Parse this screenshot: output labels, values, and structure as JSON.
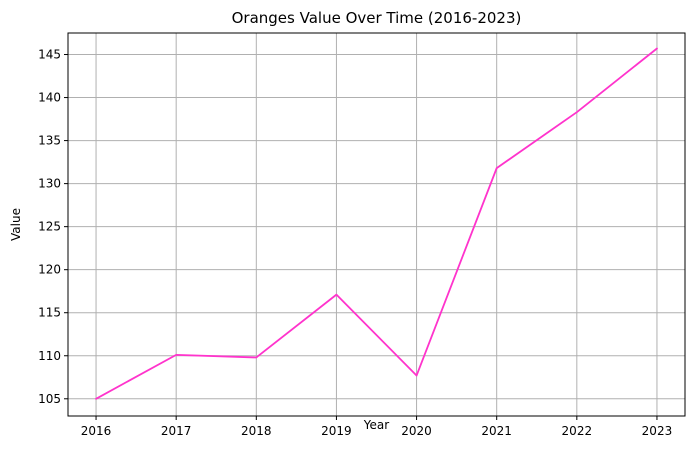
{
  "chart_data": {
    "type": "line",
    "title": "Oranges Value Over Time (2016-2023)",
    "xlabel": "Year",
    "ylabel": "Value",
    "x": [
      2016,
      2017,
      2018,
      2019,
      2020,
      2021,
      2022,
      2023
    ],
    "series": [
      {
        "values": [
          105.0,
          110.1,
          109.8,
          117.1,
          107.7,
          131.8,
          138.3,
          145.7
        ],
        "color": "#ff33cc"
      }
    ],
    "xlim": [
      2015.65,
      2023.35
    ],
    "ylim": [
      103.0,
      147.5
    ],
    "yticks": [
      105,
      110,
      115,
      120,
      125,
      130,
      135,
      140,
      145
    ],
    "xticks": [
      2016,
      2017,
      2018,
      2019,
      2020,
      2021,
      2022,
      2023
    ],
    "grid": true,
    "legend": "none"
  }
}
